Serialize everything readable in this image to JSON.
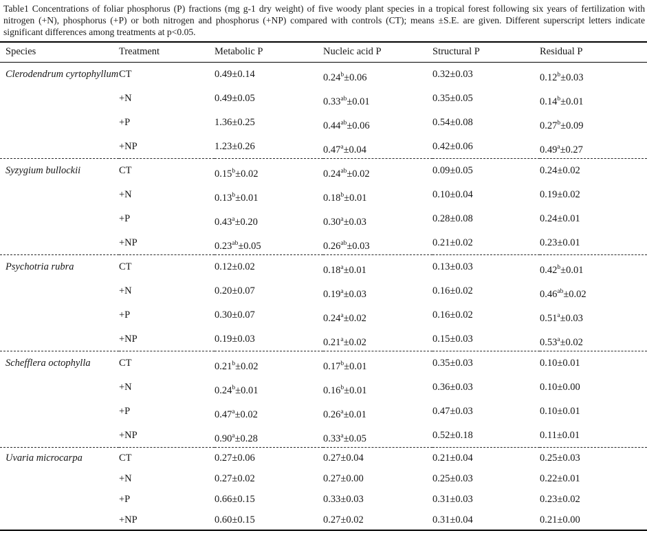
{
  "caption": "Table1 Concentrations of foliar phosphorus (P) fractions (mg g-1 dry weight) of five woody plant species in a tropical forest following six years of fertilization with nitrogen (+N), phosphorus (+P) or both nitrogen and phosphorus (+NP) compared with controls (CT); means ±S.E. are given. Different superscript letters indicate significant differences among treatments at p<0.05.",
  "table": {
    "pm": "±",
    "columns": [
      "Species",
      "Treatment",
      "Metabolic P",
      "Nucleic acid P",
      "Structural P",
      "Residual P"
    ],
    "value_column_keys": [
      "metabolic-p",
      "nucleic-acid-p",
      "structural-p",
      "residual-p"
    ],
    "species": [
      {
        "name": "Clerodendrum cyrtophyllum",
        "rows": [
          {
            "treatment": "CT",
            "values": [
              {
                "mean": "0.49",
                "sup": "",
                "se": "0.14"
              },
              {
                "mean": "0.24",
                "sup": "b",
                "se": "0.06"
              },
              {
                "mean": "0.32",
                "sup": "",
                "se": "0.03"
              },
              {
                "mean": "0.12",
                "sup": "b",
                "se": "0.03"
              }
            ]
          },
          {
            "treatment": "+N",
            "values": [
              {
                "mean": "0.49",
                "sup": "",
                "se": "0.05"
              },
              {
                "mean": "0.33",
                "sup": "ab",
                "se": "0.01"
              },
              {
                "mean": "0.35",
                "sup": "",
                "se": "0.05"
              },
              {
                "mean": "0.14",
                "sup": "b",
                "se": "0.01"
              }
            ]
          },
          {
            "treatment": "+P",
            "values": [
              {
                "mean": "1.36",
                "sup": "",
                "se": "0.25"
              },
              {
                "mean": "0.44",
                "sup": "ab",
                "se": "0.06"
              },
              {
                "mean": "0.54",
                "sup": "",
                "se": "0.08"
              },
              {
                "mean": "0.27",
                "sup": "b",
                "se": "0.09"
              }
            ]
          },
          {
            "treatment": "+NP",
            "values": [
              {
                "mean": "1.23",
                "sup": "",
                "se": "0.26"
              },
              {
                "mean": "0.47",
                "sup": "a",
                "se": "0.04"
              },
              {
                "mean": "0.42",
                "sup": "",
                "se": "0.06"
              },
              {
                "mean": "0.49",
                "sup": "a",
                "se": "0.27"
              }
            ]
          }
        ]
      },
      {
        "name": "Syzygium bullockii",
        "rows": [
          {
            "treatment": "CT",
            "values": [
              {
                "mean": "0.15",
                "sup": "b",
                "se": "0.02"
              },
              {
                "mean": "0.24",
                "sup": "ab",
                "se": "0.02"
              },
              {
                "mean": "0.09",
                "sup": "",
                "se": "0.05"
              },
              {
                "mean": "0.24",
                "sup": "",
                "se": "0.02"
              }
            ]
          },
          {
            "treatment": "+N",
            "values": [
              {
                "mean": "0.13",
                "sup": "b",
                "se": "0.01"
              },
              {
                "mean": "0.18",
                "sup": "b",
                "se": "0.01"
              },
              {
                "mean": "0.10",
                "sup": "",
                "se": "0.04"
              },
              {
                "mean": "0.19",
                "sup": "",
                "se": "0.02"
              }
            ]
          },
          {
            "treatment": "+P",
            "values": [
              {
                "mean": "0.43",
                "sup": "a",
                "se": "0.20"
              },
              {
                "mean": "0.30",
                "sup": "a",
                "se": "0.03"
              },
              {
                "mean": "0.28",
                "sup": "",
                "se": "0.08"
              },
              {
                "mean": "0.24",
                "sup": "",
                "se": "0.01"
              }
            ]
          },
          {
            "treatment": "+NP",
            "values": [
              {
                "mean": "0.23",
                "sup": "ab",
                "se": "0.05"
              },
              {
                "mean": "0.26",
                "sup": "ab",
                "se": "0.03"
              },
              {
                "mean": "0.21",
                "sup": "",
                "se": "0.02"
              },
              {
                "mean": "0.23",
                "sup": "",
                "se": "0.01"
              }
            ]
          }
        ]
      },
      {
        "name": "Psychotria rubra",
        "rows": [
          {
            "treatment": "CT",
            "values": [
              {
                "mean": "0.12",
                "sup": "",
                "se": "0.02"
              },
              {
                "mean": "0.18",
                "sup": "a",
                "se": "0.01"
              },
              {
                "mean": "0.13",
                "sup": "",
                "se": "0.03"
              },
              {
                "mean": "0.42",
                "sup": "b",
                "se": "0.01"
              }
            ]
          },
          {
            "treatment": "+N",
            "values": [
              {
                "mean": "0.20",
                "sup": "",
                "se": "0.07"
              },
              {
                "mean": "0.19",
                "sup": "a",
                "se": "0.03"
              },
              {
                "mean": "0.16",
                "sup": "",
                "se": "0.02"
              },
              {
                "mean": "0.46",
                "sup": "ab",
                "se": "0.02"
              }
            ]
          },
          {
            "treatment": "+P",
            "values": [
              {
                "mean": "0.30",
                "sup": "",
                "se": "0.07"
              },
              {
                "mean": "0.24",
                "sup": "a",
                "se": "0.02"
              },
              {
                "mean": "0.16",
                "sup": "",
                "se": "0.02"
              },
              {
                "mean": "0.51",
                "sup": "a",
                "se": "0.03"
              }
            ]
          },
          {
            "treatment": "+NP",
            "values": [
              {
                "mean": "0.19",
                "sup": "",
                "se": "0.03"
              },
              {
                "mean": "0.21",
                "sup": "a",
                "se": "0.02"
              },
              {
                "mean": "0.15",
                "sup": "",
                "se": "0.03"
              },
              {
                "mean": "0.53",
                "sup": "a",
                "se": "0.02"
              }
            ]
          }
        ]
      },
      {
        "name": "Schefflera octophylla",
        "rows": [
          {
            "treatment": "CT",
            "values": [
              {
                "mean": "0.21",
                "sup": "b",
                "se": "0.02"
              },
              {
                "mean": "0.17",
                "sup": "b",
                "se": "0.01"
              },
              {
                "mean": "0.35",
                "sup": "",
                "se": "0.03"
              },
              {
                "mean": "0.10",
                "sup": "",
                "se": "0.01"
              }
            ]
          },
          {
            "treatment": "+N",
            "values": [
              {
                "mean": "0.24",
                "sup": "b",
                "se": "0.01"
              },
              {
                "mean": "0.16",
                "sup": "b",
                "se": "0.01"
              },
              {
                "mean": "0.36",
                "sup": "",
                "se": "0.03"
              },
              {
                "mean": "0.10",
                "sup": "",
                "se": "0.00"
              }
            ]
          },
          {
            "treatment": "+P",
            "values": [
              {
                "mean": "0.47",
                "sup": "a",
                "se": "0.02"
              },
              {
                "mean": "0.26",
                "sup": "a",
                "se": "0.01"
              },
              {
                "mean": "0.47",
                "sup": "",
                "se": "0.03"
              },
              {
                "mean": "0.10",
                "sup": "",
                "se": "0.01"
              }
            ]
          },
          {
            "treatment": "+NP",
            "values": [
              {
                "mean": "0.90",
                "sup": "a",
                "se": "0.28"
              },
              {
                "mean": "0.33",
                "sup": "a",
                "se": "0.05"
              },
              {
                "mean": "0.52",
                "sup": "",
                "se": "0.18"
              },
              {
                "mean": "0.11",
                "sup": "",
                "se": "0.01"
              }
            ]
          }
        ]
      },
      {
        "name": "Uvaria microcarpa",
        "compact": true,
        "rows": [
          {
            "treatment": "CT",
            "values": [
              {
                "mean": "0.27",
                "sup": "",
                "se": "0.06"
              },
              {
                "mean": "0.27",
                "sup": "",
                "se": "0.04"
              },
              {
                "mean": "0.21",
                "sup": "",
                "se": "0.04"
              },
              {
                "mean": "0.25",
                "sup": "",
                "se": "0.03"
              }
            ]
          },
          {
            "treatment": "+N",
            "values": [
              {
                "mean": "0.27",
                "sup": "",
                "se": "0.02"
              },
              {
                "mean": "0.27",
                "sup": "",
                "se": "0.00"
              },
              {
                "mean": "0.25",
                "sup": "",
                "se": "0.03"
              },
              {
                "mean": "0.22",
                "sup": "",
                "se": "0.01"
              }
            ]
          },
          {
            "treatment": "+P",
            "values": [
              {
                "mean": "0.66",
                "sup": "",
                "se": "0.15"
              },
              {
                "mean": "0.33",
                "sup": "",
                "se": "0.03"
              },
              {
                "mean": "0.31",
                "sup": "",
                "se": "0.03"
              },
              {
                "mean": "0.23",
                "sup": "",
                "se": "0.02"
              }
            ]
          },
          {
            "treatment": "+NP",
            "values": [
              {
                "mean": "0.60",
                "sup": "",
                "se": "0.15"
              },
              {
                "mean": "0.27",
                "sup": "",
                "se": "0.02"
              },
              {
                "mean": "0.31",
                "sup": "",
                "se": "0.04"
              },
              {
                "mean": "0.21",
                "sup": "",
                "se": "0.00"
              }
            ]
          }
        ]
      }
    ]
  }
}
